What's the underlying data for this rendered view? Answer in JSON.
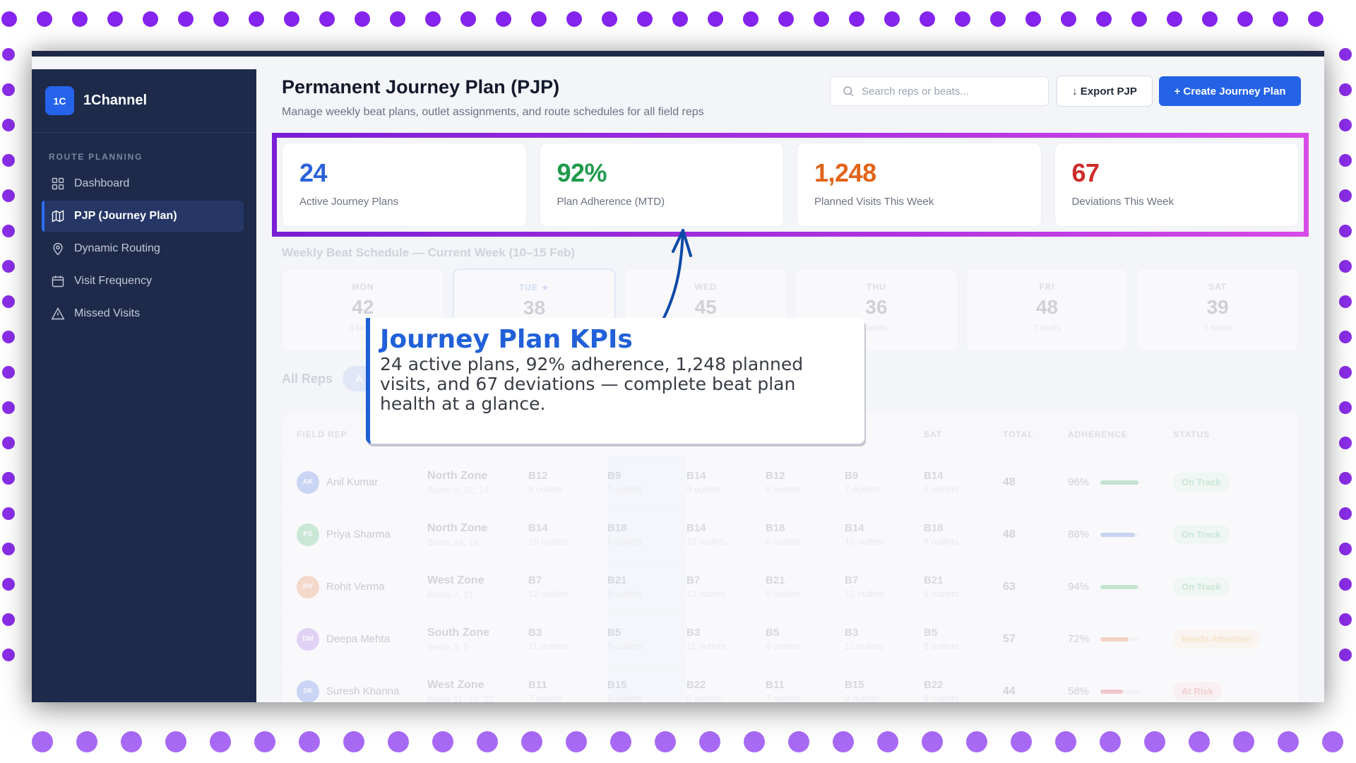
{
  "app": {
    "brand_initials": "1C",
    "brand_name": "1Channel"
  },
  "sidebar": {
    "section_label": "ROUTE PLANNING",
    "items": [
      {
        "label": "Dashboard",
        "icon": "grid-icon",
        "active": false
      },
      {
        "label": "PJP (Journey Plan)",
        "icon": "map-icon",
        "active": true
      },
      {
        "label": "Dynamic Routing",
        "icon": "map-pin-icon",
        "active": false
      },
      {
        "label": "Visit Frequency",
        "icon": "calendar-icon",
        "active": false
      },
      {
        "label": "Missed Visits",
        "icon": "alert-triangle-icon",
        "active": false
      }
    ]
  },
  "header": {
    "title": "Permanent Journey Plan (PJP)",
    "subtitle": "Manage weekly beat plans, outlet assignments, and route schedules for all field reps",
    "search_placeholder": "Search reps or beats...",
    "export_label": "↓ Export PJP",
    "create_label": "+ Create Journey Plan"
  },
  "kpis": [
    {
      "value": "24",
      "label": "Active Journey Plans",
      "color": "#2b62d9"
    },
    {
      "value": "92%",
      "label": "Plan Adherence (MTD)",
      "color": "#1f9a4b"
    },
    {
      "value": "1,248",
      "label": "Planned Visits This Week",
      "color": "#e2641b"
    },
    {
      "value": "67",
      "label": "Deviations This Week",
      "color": "#cf2a2a"
    }
  ],
  "schedule": {
    "title": "Weekly Beat Schedule — Current Week (10–15 Feb)",
    "days": [
      {
        "name": "MON",
        "count": "42",
        "beats": "6 beats",
        "today": false
      },
      {
        "name": "TUE ★",
        "count": "38",
        "beats": "",
        "today": true
      },
      {
        "name": "WED",
        "count": "45",
        "beats": "",
        "today": false
      },
      {
        "name": "THU",
        "count": "36",
        "beats": "beats",
        "today": false
      },
      {
        "name": "FRI",
        "count": "48",
        "beats": "7 beats",
        "today": false
      },
      {
        "name": "SAT",
        "count": "39",
        "beats": "6 beats",
        "today": false
      }
    ]
  },
  "filter": {
    "label": "All Reps",
    "pill": "A"
  },
  "table": {
    "headers": {
      "rep": "FIELD REP",
      "sat": "SAT",
      "total": "TOTAL",
      "adherence": "ADHERENCE",
      "status": "STATUS"
    },
    "rows": [
      {
        "initials": "AK",
        "avatar_color": "#8fa8f0",
        "name": "Anil Kumar",
        "zone": "North Zone",
        "zone_beats": "Beats 9, 12, 14",
        "days": [
          {
            "b": "B12",
            "o": "8 outlets"
          },
          {
            "b": "B9",
            "o": "7 outlets"
          },
          {
            "b": "B14",
            "o": "9 outlets"
          },
          {
            "b": "B12",
            "o": "8 outlets"
          },
          {
            "b": "B9",
            "o": "7 outlets"
          },
          {
            "b": "B14",
            "o": "9 outlets"
          }
        ],
        "total": "48",
        "adherence": "96%",
        "adh_pct": 96,
        "bar_color": "#7fcc99",
        "status": "On Track",
        "status_bg": "#e6f7ec",
        "status_fg": "#8ed3a6"
      },
      {
        "initials": "PS",
        "avatar_color": "#8ed3a4",
        "name": "Priya Sharma",
        "zone": "North Zone",
        "zone_beats": "Beats 14, 18",
        "days": [
          {
            "b": "B14",
            "o": "10 outlets"
          },
          {
            "b": "B18",
            "o": "6 outlets"
          },
          {
            "b": "B14",
            "o": "10 outlets"
          },
          {
            "b": "B18",
            "o": "6 outlets"
          },
          {
            "b": "B14",
            "o": "10 outlets"
          },
          {
            "b": "B18",
            "o": "6 outlets"
          }
        ],
        "total": "48",
        "adherence": "88%",
        "adh_pct": 88,
        "bar_color": "#8ea6ea",
        "status": "On Track",
        "status_bg": "#e6f7ec",
        "status_fg": "#8ed3a6"
      },
      {
        "initials": "RV",
        "avatar_color": "#f3b08a",
        "name": "Rohit Verma",
        "zone": "West Zone",
        "zone_beats": "Beats 7, 21",
        "days": [
          {
            "b": "B7",
            "o": "12 outlets"
          },
          {
            "b": "B21",
            "o": "9 outlets"
          },
          {
            "b": "B7",
            "o": "12 outlets"
          },
          {
            "b": "B21",
            "o": "9 outlets"
          },
          {
            "b": "B7",
            "o": "12 outlets"
          },
          {
            "b": "B21",
            "o": "9 outlets"
          }
        ],
        "total": "63",
        "adherence": "94%",
        "adh_pct": 94,
        "bar_color": "#7fcc99",
        "status": "On Track",
        "status_bg": "#e6f7ec",
        "status_fg": "#8ed3a6"
      },
      {
        "initials": "DM",
        "avatar_color": "#c7a3f0",
        "name": "Deepa Mehta",
        "zone": "South Zone",
        "zone_beats": "Beats 3, 5",
        "days": [
          {
            "b": "B3",
            "o": "11 outlets"
          },
          {
            "b": "B5",
            "o": "8 outlets"
          },
          {
            "b": "B3",
            "o": "11 outlets"
          },
          {
            "b": "B5",
            "o": "8 outlets"
          },
          {
            "b": "B3",
            "o": "11 outlets"
          },
          {
            "b": "B5",
            "o": "8 outlets"
          }
        ],
        "total": "57",
        "adherence": "72%",
        "adh_pct": 72,
        "bar_color": "#f0a07c",
        "status": "Needs Attention",
        "status_bg": "#fff4e3",
        "status_fg": "#f5c98b"
      },
      {
        "initials": "SK",
        "avatar_color": "#8fa8f0",
        "name": "Suresh Khanna",
        "zone": "West Zone",
        "zone_beats": "Beats 11, 15, 22",
        "days": [
          {
            "b": "B11",
            "o": "7 outlets"
          },
          {
            "b": "B15",
            "o": "9 outlets"
          },
          {
            "b": "B22",
            "o": "6 outlets"
          },
          {
            "b": "B11",
            "o": "7 outlets"
          },
          {
            "b": "B15",
            "o": "9 outlets"
          },
          {
            "b": "B22",
            "o": "6 outlets"
          }
        ],
        "total": "44",
        "adherence": "58%",
        "adh_pct": 58,
        "bar_color": "#e98b8b",
        "status": "At Risk",
        "status_bg": "#fdeaea",
        "status_fg": "#ef9a9a"
      }
    ]
  },
  "annotation": {
    "title": "Journey Plan KPIs",
    "body": "24 active plans, 92% adherence, 1,248 planned visits, and 67 deviations — complete beat plan health at a glance.",
    "highlight_color": "#a42de0",
    "arrow_color": "#0d4aa8"
  }
}
